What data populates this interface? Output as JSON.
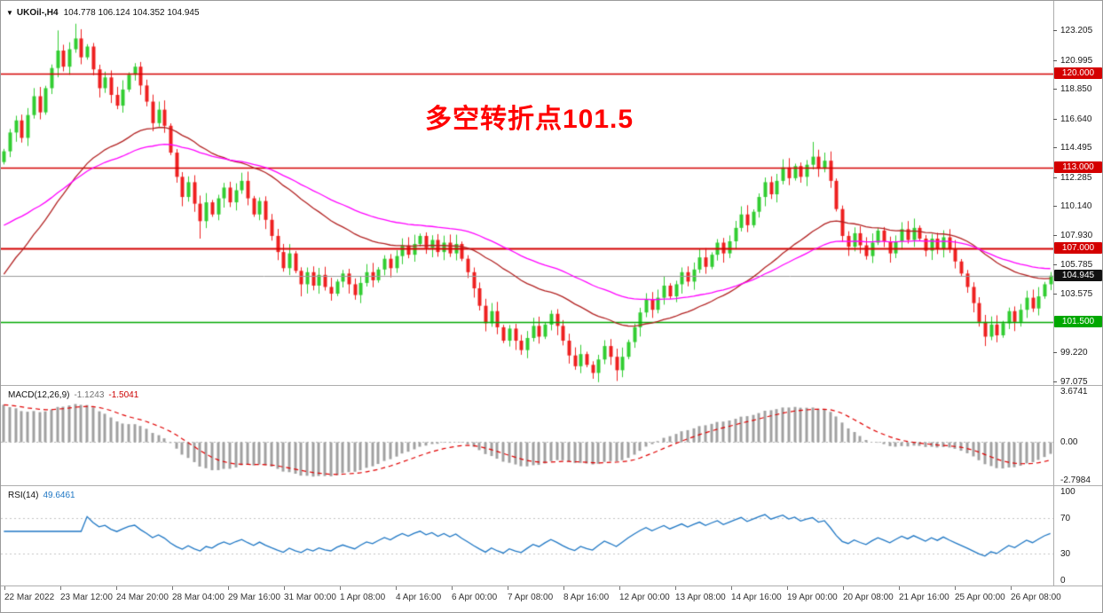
{
  "window": {
    "dropdown_icon": "▼",
    "title_symbol": "UKOil-,H4",
    "ohlc": "104.778 106.124 104.352 104.945"
  },
  "annotation": {
    "text": "多空转折点101.5",
    "color": "#ff0000"
  },
  "chart_data": {
    "type": "candlestick",
    "symbol": "UKOil-",
    "timeframe": "H4",
    "title": "UKOil-,H4 104.778 106.124 104.352 104.945",
    "ohlc": {
      "open": 104.778,
      "high": 106.124,
      "low": 104.352,
      "close": 104.945
    },
    "ylim": [
      96.8,
      125.4
    ],
    "grid": false,
    "price_ticks": [
      "123.205",
      "120.995",
      "118.850",
      "116.640",
      "114.495",
      "112.285",
      "110.140",
      "107.930",
      "105.785",
      "103.575",
      "99.220",
      "97.075"
    ],
    "level_lines": [
      {
        "label": "120.000",
        "price": 120.0,
        "color": "#d40000",
        "width": 1.4
      },
      {
        "label": "113.000",
        "price": 113.0,
        "color": "#d40000",
        "width": 1.4
      },
      {
        "label": "107.000",
        "price": 107.0,
        "color": "#d40000",
        "width": 2
      },
      {
        "label": "101.500",
        "price": 101.5,
        "color": "#00a800",
        "width": 1.6
      }
    ],
    "current_price": {
      "label": "104.945",
      "price": 104.945,
      "badge_bg": "#111111",
      "line_color": "#9a9a9a"
    },
    "time_ticks": [
      "22 Mar 2022",
      "23 Mar 12:00",
      "24 Mar 20:00",
      "28 Mar 04:00",
      "29 Mar 16:00",
      "31 Mar 00:00",
      "1 Apr 08:00",
      "4 Apr 16:00",
      "6 Apr 00:00",
      "7 Apr 08:00",
      "8 Apr 16:00",
      "12 Apr 00:00",
      "13 Apr 08:00",
      "14 Apr 16:00",
      "19 Apr 00:00",
      "20 Apr 08:00",
      "21 Apr 16:00",
      "25 Apr 00:00",
      "26 Apr 08:00"
    ],
    "candles": {
      "bull": "#32cd32",
      "bear": "#ee2020",
      "closes": [
        114.2,
        115.6,
        116.5,
        115.2,
        116.9,
        118.3,
        117.1,
        118.9,
        120.4,
        121.7,
        120.5,
        121.8,
        122.6,
        121.2,
        122.0,
        120.3,
        118.9,
        119.7,
        118.4,
        117.6,
        118.8,
        119.9,
        120.5,
        119.1,
        117.9,
        116.3,
        117.3,
        116.1,
        114.1,
        112.3,
        110.8,
        111.9,
        110.3,
        109.0,
        110.4,
        109.5,
        110.7,
        111.5,
        110.4,
        111.3,
        112.0,
        110.7,
        109.5,
        110.5,
        109.1,
        107.9,
        106.7,
        105.5,
        106.6,
        105.3,
        104.3,
        105.2,
        104.2,
        105.0,
        104.1,
        103.6,
        104.5,
        105.1,
        104.3,
        103.5,
        104.4,
        105.2,
        104.6,
        105.4,
        106.2,
        105.5,
        106.4,
        107.2,
        106.5,
        107.3,
        107.9,
        107.0,
        107.6,
        106.7,
        107.4,
        106.6,
        107.3,
        106.2,
        105.2,
        104.0,
        102.7,
        101.4,
        102.3,
        101.1,
        100.1,
        101.0,
        100.1,
        99.4,
        100.3,
        101.2,
        100.4,
        101.3,
        102.1,
        101.2,
        100.1,
        99.0,
        98.2,
        99.1,
        98.3,
        97.7,
        98.7,
        99.7,
        98.9,
        97.9,
        98.9,
        100.0,
        101.1,
        102.2,
        103.2,
        102.4,
        103.3,
        104.2,
        103.4,
        104.3,
        105.2,
        104.5,
        105.4,
        106.3,
        105.6,
        106.5,
        107.4,
        106.6,
        107.5,
        108.5,
        109.5,
        108.7,
        109.7,
        110.8,
        111.9,
        111.0,
        112.0,
        113.0,
        112.2,
        113.1,
        112.3,
        113.2,
        113.8,
        112.9,
        113.5,
        112.0,
        109.9,
        107.9,
        107.1,
        108.1,
        107.2,
        106.4,
        107.4,
        108.3,
        107.5,
        106.6,
        107.5,
        108.4,
        107.6,
        108.5,
        107.7,
        106.8,
        107.7,
        106.9,
        107.8,
        106.9,
        106.0,
        105.1,
        104.1,
        102.9,
        101.5,
        100.4,
        101.3,
        100.5,
        101.4,
        102.3,
        101.5,
        102.4,
        103.3,
        102.5,
        103.4,
        104.3,
        104.945
      ],
      "wick_overrides": {
        "9": {
          "h": 123.2
        },
        "12": {
          "h": 123.7
        },
        "33": {
          "l": 107.7
        },
        "50": {
          "l": 103.4
        },
        "103": {
          "l": 97.1
        },
        "136": {
          "h": 114.9
        },
        "165": {
          "l": 99.7
        }
      }
    },
    "moving_averages": [
      {
        "name": "fast-ma",
        "period": 34,
        "seed": 104.5,
        "color": "#b22222"
      },
      {
        "name": "slow-ma",
        "period": 60,
        "seed": 108.5,
        "color": "#ff00ff"
      }
    ],
    "macd": {
      "label": "MACD(12,26,9)",
      "fast": 12,
      "slow": 26,
      "signal_period": 9,
      "value": "-1.1243",
      "signal_value": "-1.5041",
      "range": {
        "max": 3.6741,
        "min": -2.7984
      },
      "ticks": [
        "3.6741",
        "0.00",
        "-2.7984"
      ],
      "histogram_color": "#a0a0a0",
      "signal_color": "#e00000"
    },
    "rsi": {
      "label": "RSI(14)",
      "period": 14,
      "value": "49.6461",
      "range": {
        "max": 100,
        "min": 0
      },
      "ticks": [
        "100",
        "70",
        "30",
        "0"
      ],
      "levels": [
        70,
        30
      ],
      "line_color": "#1f77c4"
    }
  }
}
